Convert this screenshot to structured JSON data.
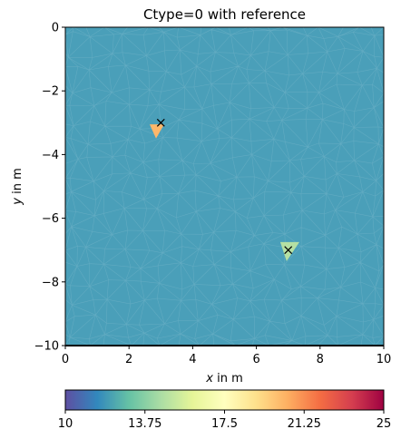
{
  "chart_data": {
    "type": "heatmap",
    "title": "Ctype=0 with reference",
    "xlabel_var": "x",
    "xlabel_rest": " in m",
    "ylabel_var": "y",
    "ylabel_rest": " in m",
    "xlim": [
      0,
      10
    ],
    "ylim": [
      -10,
      0
    ],
    "xticks": [
      0,
      2,
      4,
      6,
      8,
      10
    ],
    "xtick_labels": [
      "0",
      "2",
      "4",
      "6",
      "8",
      "10"
    ],
    "yticks": [
      0,
      -2,
      -4,
      -6,
      -8,
      -10
    ],
    "ytick_labels": [
      "0",
      "−2",
      "−4",
      "−6",
      "−8",
      "−10"
    ],
    "grid": false,
    "background_value": 12.2,
    "background_color": "#4a9fb9",
    "anomalies": [
      {
        "value": 20.5,
        "color": "#fdb76a",
        "vertices": [
          [
            2.65,
            -3.05
          ],
          [
            3.1,
            -3.05
          ],
          [
            2.85,
            -3.5
          ]
        ]
      },
      {
        "value": 15.0,
        "color": "#b5e0a3",
        "vertices": [
          [
            6.75,
            -6.75
          ],
          [
            7.35,
            -6.75
          ],
          [
            6.95,
            -7.35
          ]
        ]
      }
    ],
    "reference_points": [
      {
        "x": 3.0,
        "y": -3.0,
        "marker": "x"
      },
      {
        "x": 7.0,
        "y": -7.0,
        "marker": "x"
      }
    ],
    "colorbar": {
      "colormap": "Spectral_r",
      "min": 10,
      "max": 25,
      "ticks": [
        10,
        13.75,
        17.5,
        21.25,
        25
      ],
      "tick_labels": [
        "10",
        "13.75",
        "17.5",
        "21.25",
        "25"
      ],
      "colors": [
        "#5e4fa2",
        "#3288bd",
        "#66c2a5",
        "#abdda4",
        "#e6f598",
        "#ffffbf",
        "#fee08b",
        "#fdae61",
        "#f46d43",
        "#d53e4f",
        "#9e0142"
      ]
    }
  }
}
